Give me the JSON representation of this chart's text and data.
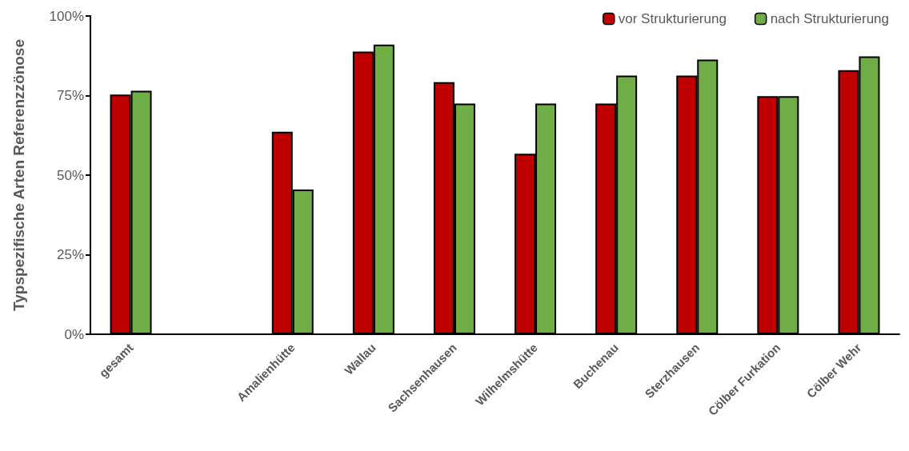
{
  "chart_data": {
    "type": "bar",
    "ylabel": "Typspezifische Arten Referenzzönose",
    "categories": [
      "gesamt",
      null,
      "Amalienhütte",
      "Wallau",
      "Sachsenhausen",
      "Wilhelmshütte",
      "Buchenau",
      "Sterzhausen",
      "Cölber Furkation",
      "Cölber Wehr"
    ],
    "series": [
      {
        "name": "vor Strukturierung",
        "color": "#c00000",
        "values": [
          75.3,
          null,
          63.6,
          88.8,
          79.2,
          56.7,
          72.5,
          81.3,
          74.8,
          83.0
        ]
      },
      {
        "name": "nach Strukturierung",
        "color": "#70ad47",
        "values": [
          76.5,
          null,
          45.5,
          91.0,
          72.5,
          72.5,
          81.3,
          86.3,
          74.8,
          87.3
        ]
      }
    ],
    "ylim": [
      0,
      100
    ],
    "yticks": [
      {
        "value": 0,
        "label": "0%"
      },
      {
        "value": 25,
        "label": "25%"
      },
      {
        "value": 50,
        "label": "50%"
      },
      {
        "value": 75,
        "label": "75%"
      },
      {
        "value": 100,
        "label": "100%"
      }
    ],
    "grid": false,
    "legend": "top right"
  }
}
